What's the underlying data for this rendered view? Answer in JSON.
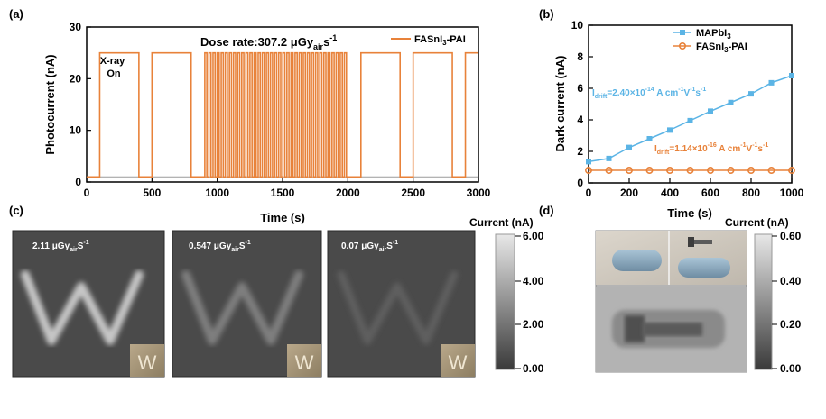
{
  "panels": {
    "a": "(a)",
    "b": "(b)",
    "c": "(c)",
    "d": "(d)"
  },
  "chart_data": [
    {
      "id": "a",
      "type": "line",
      "xlabel": "Time (s)",
      "ylabel": "Photocurrent (nA)",
      "xlim": [
        0,
        3000
      ],
      "ylim": [
        0,
        30
      ],
      "xticks": [
        0,
        500,
        1000,
        1500,
        2000,
        2500,
        3000
      ],
      "yticks": [
        0,
        10,
        20,
        30
      ],
      "legend_loc": "top-right",
      "annotations": {
        "dose_rate": "Dose rate:307.2",
        "unit_main": "μGy",
        "unit_sub": "air",
        "unit_tail": "s",
        "unit_sup": "-1",
        "xray_line1": "X-ray",
        "xray_line2": "On"
      },
      "colors": {
        "series": "#E8823A",
        "baseline": "#9a9a9a"
      },
      "series": [
        {
          "name": "FASnI3-PAI",
          "name_main": "FASnI",
          "name_sub": "3",
          "name_tail": "-PAI",
          "baseline": 1,
          "on_level": 25,
          "on_intervals": [
            [
              100,
              400
            ],
            [
              500,
              800
            ]
          ],
          "fast_pulse_region": [
            900,
            2000
          ],
          "fast_pulse_count": 35,
          "late_on_intervals": [
            [
              2100,
              2400
            ],
            [
              2500,
              2800
            ],
            [
              2900,
              3000
            ]
          ]
        }
      ]
    },
    {
      "id": "b",
      "type": "line",
      "xlabel": "Time (s)",
      "ylabel": "Dark current (nA)",
      "xlim": [
        0,
        1000
      ],
      "ylim": [
        0,
        10
      ],
      "xticks": [
        0,
        200,
        400,
        600,
        800,
        1000
      ],
      "yticks": [
        0,
        2,
        4,
        6,
        8,
        10
      ],
      "legend_loc": "top-right",
      "x": [
        0,
        100,
        200,
        300,
        400,
        500,
        600,
        700,
        800,
        900,
        1000
      ],
      "series": [
        {
          "name": "MAPbI3",
          "name_main": "MAPbI",
          "name_sub": "3",
          "name_tail": "",
          "color": "#5BB4E5",
          "marker": "square",
          "values": [
            1.35,
            1.55,
            2.25,
            2.8,
            3.35,
            3.95,
            4.55,
            5.1,
            5.65,
            6.35,
            6.8
          ],
          "label_main": "I",
          "label_sub": "drift",
          "label_tail": "=2.40×10",
          "label_exp": "-14",
          "label_unit": " A cm",
          "label_unit_exp1": "-1",
          "label_unit_v": "V",
          "label_unit_exp2": "-1",
          "label_unit_s": "s",
          "label_unit_exp3": "-1"
        },
        {
          "name": "FASnI3-PAI",
          "name_main": "FASnI",
          "name_sub": "3",
          "name_tail": "-PAI",
          "color": "#E8823A",
          "marker": "circle",
          "values": [
            0.8,
            0.8,
            0.8,
            0.8,
            0.8,
            0.8,
            0.8,
            0.8,
            0.8,
            0.8,
            0.8
          ],
          "label_main": "I",
          "label_sub": "drift",
          "label_tail": "=1.14×10",
          "label_exp": "-16",
          "label_unit": " A cm",
          "label_unit_exp1": "-1",
          "label_unit_v": "V",
          "label_unit_exp2": "-1",
          "label_unit_s": "s",
          "label_unit_exp3": "-1"
        }
      ]
    }
  ],
  "panel_c": {
    "colorbar_title": "Current (nA)",
    "colorbar_ticks": [
      "6.00",
      "4.00",
      "2.00",
      "0.00"
    ],
    "images": [
      {
        "main": "2.11 μGy",
        "sub": "air",
        "tail": "S",
        "sup": "-1",
        "letter": "W",
        "intensity": 1.0
      },
      {
        "main": "0.547 μGy",
        "sub": "air",
        "tail": "S",
        "sup": "-1",
        "letter": "W",
        "intensity": 0.55
      },
      {
        "main": "0.07 μGy",
        "sub": "air",
        "tail": "S",
        "sup": "-1",
        "letter": "W",
        "intensity": 0.25
      }
    ]
  },
  "panel_d": {
    "colorbar_title": "Current (nA)",
    "colorbar_ticks": [
      "0.60",
      "0.40",
      "0.20",
      "0.00"
    ]
  }
}
